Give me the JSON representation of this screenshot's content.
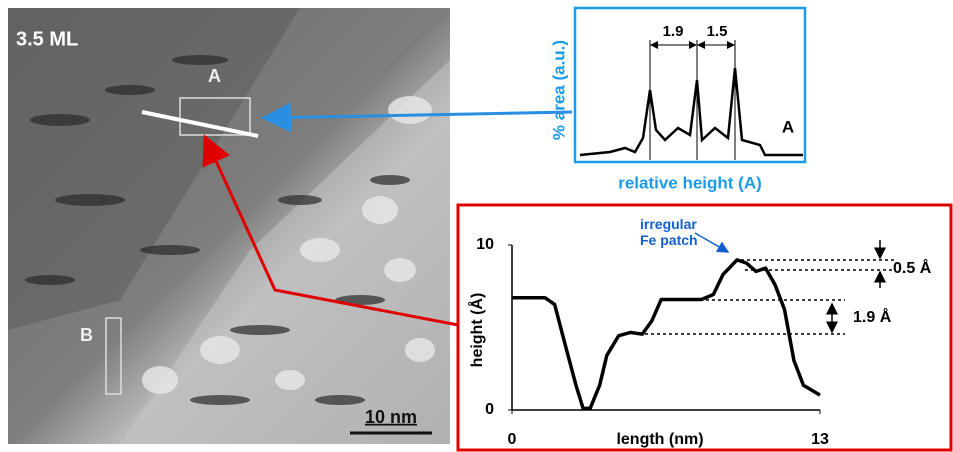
{
  "image": {
    "label": "3.5 ML",
    "region_a": "A",
    "region_b": "B",
    "scale_bar": "10 nm"
  },
  "histogram": {
    "y_label": "% area (a.u.)",
    "x_label": "relative height (A)",
    "spacings": [
      "1.9",
      "1.5"
    ],
    "curve_label": "A"
  },
  "chart_data": {
    "type": "line",
    "annotation": "irregular Fe patch",
    "x_label": "length (nm)",
    "y_label": "height (Å)",
    "x": [
      0,
      1.4,
      1.8,
      2.2,
      2.7,
      3.0,
      3.3,
      3.7,
      4.0,
      4.5,
      5.0,
      5.5,
      5.9,
      6.3,
      7.1,
      8.0,
      8.5,
      8.9,
      9.5,
      9.9,
      10.3,
      10.7,
      11.1,
      11.5,
      11.9,
      12.3,
      13
    ],
    "values": [
      6.8,
      6.8,
      6.4,
      4.2,
      1.5,
      0.1,
      0.1,
      1.5,
      3.3,
      4.5,
      4.7,
      4.6,
      5.4,
      6.7,
      6.7,
      6.7,
      7.0,
      8.2,
      9.1,
      8.9,
      8.4,
      8.6,
      7.6,
      6.1,
      3.0,
      1.5,
      0.9
    ],
    "color": "#000000",
    "xlim": [
      0,
      13
    ],
    "ylim": [
      0,
      10
    ],
    "xticks": [
      0,
      13
    ],
    "yticks": [
      0,
      10
    ],
    "steps": [
      "0.5 Å",
      "1.9 Å"
    ]
  }
}
